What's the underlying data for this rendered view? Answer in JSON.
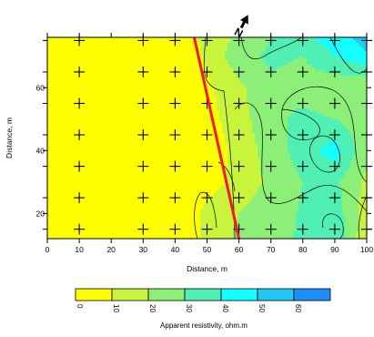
{
  "chart_data": {
    "type": "heatmap",
    "xlabel": "Distance, m",
    "ylabel": "Distance, m",
    "xlim": [
      0,
      100
    ],
    "ylim": [
      12,
      76
    ],
    "x_ticks": [
      0,
      10,
      20,
      30,
      40,
      50,
      60,
      70,
      80,
      90,
      100
    ],
    "y_ticks": [
      20,
      40,
      60
    ],
    "y_minor_ticks": [
      15,
      25,
      35,
      45,
      55,
      65,
      75
    ],
    "measurement_points": {
      "x": [
        10,
        30,
        40,
        50,
        60,
        70,
        80,
        90,
        100
      ],
      "y": [
        15,
        25,
        35,
        45,
        55,
        65,
        75
      ]
    },
    "line": {
      "x": [
        46,
        60
      ],
      "y": [
        76,
        12
      ],
      "color": "#ee1c24"
    },
    "grid": false,
    "north_arrow": {
      "label": "N"
    },
    "colorbar": {
      "label": "Apparent resistivity, ohm.m",
      "ticks": [
        "0",
        "10",
        "20",
        "30",
        "40",
        "50",
        "60"
      ],
      "colors": [
        "#ffff00",
        "#c8f43c",
        "#8cf078",
        "#50f0b4",
        "#14ffff",
        "#22c8f4",
        "#1e8cff"
      ]
    },
    "grid_values": {
      "x": [
        0,
        10,
        20,
        30,
        40,
        50,
        60,
        70,
        80,
        90,
        100
      ],
      "y": [
        12,
        20,
        30,
        40,
        50,
        60,
        70,
        76
      ],
      "rows": [
        [
          0,
          0,
          0,
          0,
          0,
          12,
          22,
          25,
          32,
          38,
          12
        ],
        [
          0,
          0,
          0,
          0,
          0,
          13,
          20,
          26,
          31,
          36,
          14
        ],
        [
          0,
          0,
          0,
          0,
          0,
          5,
          14,
          22,
          30,
          32,
          18
        ],
        [
          0,
          0,
          0,
          0,
          0,
          3,
          14,
          24,
          35,
          45,
          22
        ],
        [
          0,
          0,
          0,
          0,
          0,
          6,
          16,
          27,
          33,
          30,
          24
        ],
        [
          0,
          0,
          0,
          0,
          0,
          8,
          18,
          28,
          25,
          22,
          20
        ],
        [
          0,
          0,
          0,
          0,
          0,
          12,
          26,
          32,
          30,
          40,
          48
        ],
        [
          0,
          0,
          0,
          0,
          0,
          14,
          22,
          30,
          38,
          45,
          55
        ]
      ]
    }
  }
}
